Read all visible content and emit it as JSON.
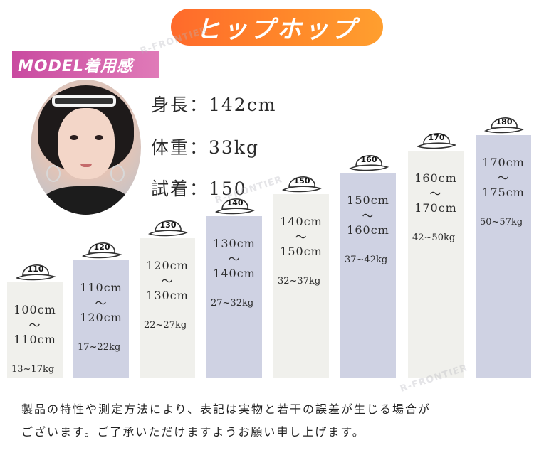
{
  "title": "ヒップホップ",
  "model_label": "MODEL着用感",
  "model": {
    "height": "身長：142cm",
    "weight": "体重：33kg",
    "fit": "試着：150"
  },
  "sizes": [
    {
      "size": "110",
      "h1": "100cm",
      "tilde": "～",
      "h2": "110cm",
      "w": "13~17kg"
    },
    {
      "size": "120",
      "h1": "110cm",
      "tilde": "～",
      "h2": "120cm",
      "w": "17~22kg"
    },
    {
      "size": "130",
      "h1": "120cm",
      "tilde": "～",
      "h2": "130cm",
      "w": "22~27kg"
    },
    {
      "size": "140",
      "h1": "130cm",
      "tilde": "～",
      "h2": "140cm",
      "w": "27~32kg"
    },
    {
      "size": "150",
      "h1": "140cm",
      "tilde": "～",
      "h2": "150cm",
      "w": "32~37kg"
    },
    {
      "size": "160",
      "h1": "150cm",
      "tilde": "～",
      "h2": "160cm",
      "w": "37~42kg"
    },
    {
      "size": "170",
      "h1": "160cm",
      "tilde": "～",
      "h2": "170cm",
      "w": "42~50kg"
    },
    {
      "size": "180",
      "h1": "170cm",
      "tilde": "～",
      "h2": "175cm",
      "w": "50~57kg"
    }
  ],
  "note_line1": "製品の特性や測定方法により、表記は実物と若干の誤差が生じる場合が",
  "note_line2": "ございます。ご了承いただけますようお願い申し上げます。",
  "watermark": "R-FRONTIER",
  "colors": {
    "title_orange": "#ff7a2a",
    "model_pink": "#d35ea9",
    "bar_gray": "#f0f0ec",
    "bar_blue": "#cfd2e3"
  }
}
